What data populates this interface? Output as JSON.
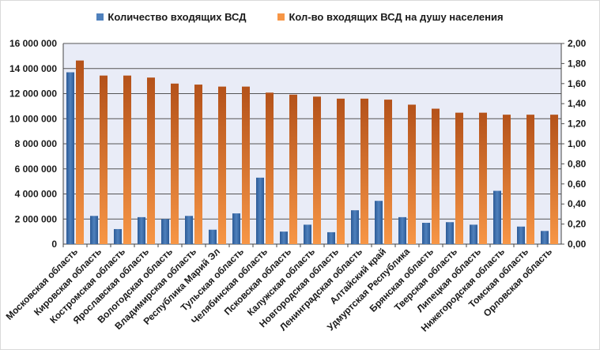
{
  "chart_data": {
    "type": "bar",
    "legend_position": "top",
    "grid": true,
    "colors": {
      "series_1": "#4f81bd",
      "series_1_dark": "#2c5a96",
      "series_2": "#f79646",
      "series_2_dark": "#b4521a",
      "plot_background": "#e9ecf7",
      "gridline": "#555555"
    },
    "categories": [
      "Московская область",
      "Кировская область",
      "Костромская область",
      "Ярославская область",
      "Вологодская область",
      "Владимирская область",
      "Республика Марий Эл",
      "Тульская область",
      "Челябинская область",
      "Псковская область",
      "Калужская область",
      "Новгородская область",
      "Ленинградская область",
      "Алтайский край",
      "Удмуртская Республика",
      "Брянская область",
      "Тверская область",
      "Липецкая область",
      "Нижегородская область",
      "Томская область",
      "Орловская область"
    ],
    "series": [
      {
        "name": "Количество входящих ВСД",
        "axis": "left",
        "values": [
          13700000,
          2250000,
          1200000,
          2150000,
          2000000,
          2250000,
          1150000,
          2450000,
          5300000,
          1000000,
          1550000,
          950000,
          2700000,
          3450000,
          2150000,
          1700000,
          1750000,
          1550000,
          4250000,
          1400000,
          1050000
        ]
      },
      {
        "name": "Кол-во входящих ВСД на душу населения",
        "axis": "right",
        "values": [
          1.83,
          1.68,
          1.68,
          1.66,
          1.6,
          1.59,
          1.57,
          1.57,
          1.51,
          1.49,
          1.47,
          1.45,
          1.45,
          1.44,
          1.39,
          1.35,
          1.31,
          1.31,
          1.29,
          1.29,
          1.29
        ]
      }
    ],
    "y_left": {
      "ylim": [
        0,
        16000000
      ],
      "ticks": [
        0,
        2000000,
        4000000,
        6000000,
        8000000,
        10000000,
        12000000,
        14000000,
        16000000
      ],
      "tick_labels": [
        "0",
        "2 000 000",
        "4 000 000",
        "6 000 000",
        "8 000 000",
        "10 000 000",
        "12 000 000",
        "14 000 000",
        "16 000 000"
      ]
    },
    "y_right": {
      "ylim": [
        0,
        2
      ],
      "ticks": [
        0,
        0.2,
        0.4,
        0.6,
        0.8,
        1.0,
        1.2,
        1.4,
        1.6,
        1.8,
        2.0
      ],
      "tick_labels": [
        "0,00",
        "0,20",
        "0,40",
        "0,60",
        "0,80",
        "1,00",
        "1,20",
        "1,40",
        "1,60",
        "1,80",
        "2,00"
      ]
    }
  }
}
